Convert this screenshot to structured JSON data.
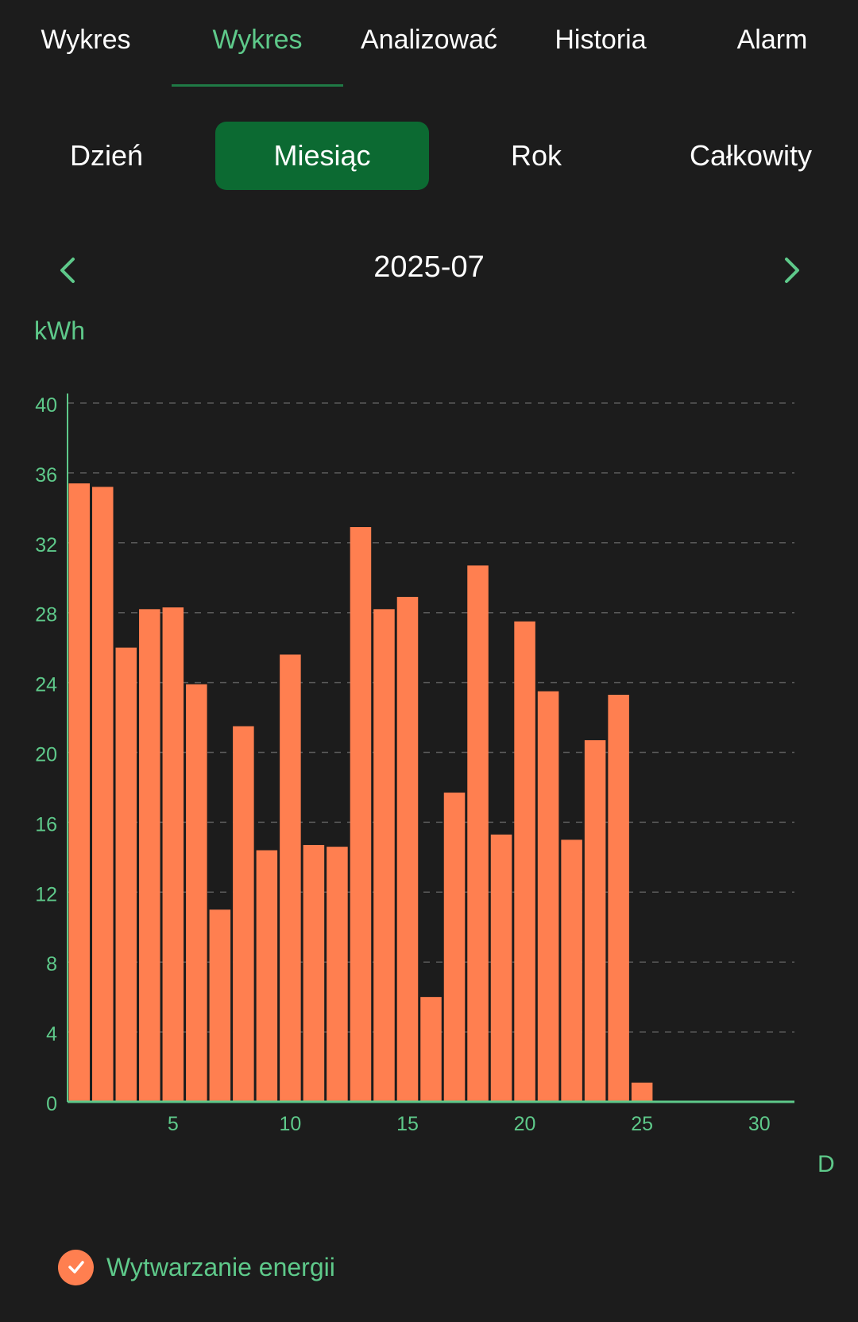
{
  "top_tabs": [
    {
      "label": "Wykres",
      "active": false
    },
    {
      "label": "Wykres",
      "active": true
    },
    {
      "label": "Analizować",
      "active": false
    },
    {
      "label": "Historia",
      "active": false
    },
    {
      "label": "Alarm",
      "active": false
    }
  ],
  "period_tabs": [
    {
      "label": "Dzień",
      "active": false
    },
    {
      "label": "Miesiąc",
      "active": true
    },
    {
      "label": "Rok",
      "active": false
    },
    {
      "label": "Całkowity",
      "active": false
    }
  ],
  "date_nav": {
    "current": "2025-07",
    "prev_icon": "chevron-left-icon",
    "next_icon": "chevron-right-icon"
  },
  "colors": {
    "accent": "#5ec98a",
    "bar": "#ff7f50",
    "active_bg": "#0c6a32",
    "background": "#1c1c1c"
  },
  "chart_data": {
    "type": "bar",
    "ylabel": "kWh",
    "xlabel": "D",
    "ylim": [
      0,
      40
    ],
    "yticks": [
      0,
      4,
      8,
      12,
      16,
      20,
      24,
      28,
      32,
      36,
      40
    ],
    "xlim": [
      0.5,
      31.5
    ],
    "xticks": [
      5,
      10,
      15,
      20,
      25,
      30
    ],
    "grid": true,
    "x": [
      1,
      2,
      3,
      4,
      5,
      6,
      7,
      8,
      9,
      10,
      11,
      12,
      13,
      14,
      15,
      16,
      17,
      18,
      19,
      20,
      21,
      22,
      23,
      24,
      25,
      26,
      27,
      28,
      29,
      30,
      31
    ],
    "series": [
      {
        "name": "Wytwarzanie energii",
        "color": "#ff7f50",
        "values": [
          35.4,
          35.2,
          26.0,
          28.2,
          28.3,
          23.9,
          11.0,
          21.5,
          14.4,
          25.6,
          14.7,
          14.6,
          32.9,
          28.2,
          28.9,
          6.0,
          17.7,
          30.7,
          15.3,
          27.5,
          23.5,
          15.0,
          20.7,
          23.3,
          1.1,
          0,
          0,
          0,
          0,
          0,
          0
        ]
      }
    ]
  },
  "legend": {
    "label": "Wytwarzanie energii",
    "icon": "check-icon"
  }
}
